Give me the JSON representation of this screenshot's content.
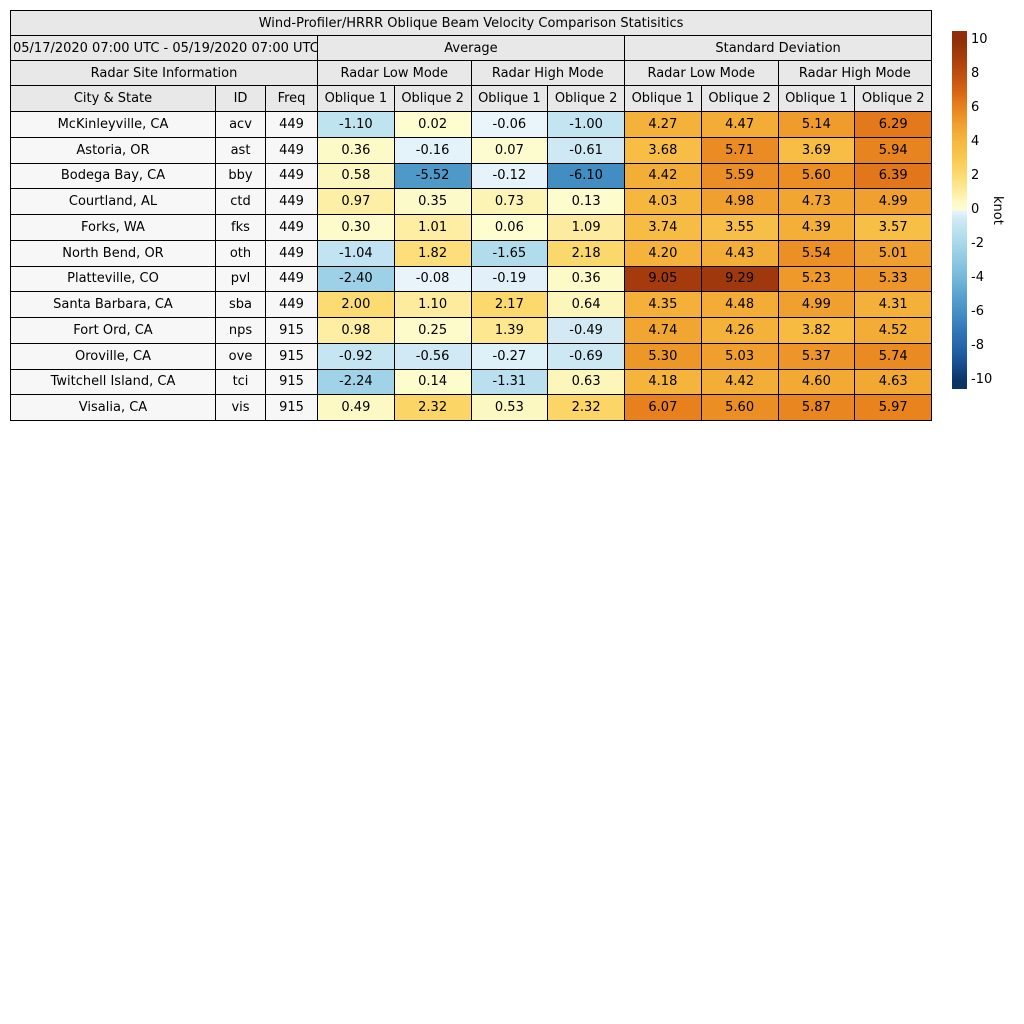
{
  "chart_data": {
    "type": "heatmap",
    "title": "Wind-Profiler/HRRR Oblique Beam Velocity Comparison Statisitics",
    "date_range": "05/17/2020 07:00 UTC - 05/19/2020 07:00 UTC",
    "site_info_header": "Radar Site Information",
    "group_headers": {
      "average": "Average",
      "std": "Standard Deviation"
    },
    "mode_headers": [
      "Radar Low Mode",
      "Radar High Mode",
      "Radar Low Mode",
      "Radar High Mode"
    ],
    "info_columns": [
      "City & State",
      "ID",
      "Freq"
    ],
    "oblique_headers": [
      "Oblique 1",
      "Oblique 2",
      "Oblique 1",
      "Oblique 2",
      "Oblique 1",
      "Oblique 2",
      "Oblique 1",
      "Oblique 2"
    ],
    "rows": [
      {
        "city": "McKinleyville, CA",
        "id": "acv",
        "freq": "449",
        "values": [
          -1.1,
          0.02,
          -0.06,
          -1.0,
          4.27,
          4.47,
          5.14,
          6.29
        ]
      },
      {
        "city": "Astoria, OR",
        "id": "ast",
        "freq": "449",
        "values": [
          0.36,
          -0.16,
          0.07,
          -0.61,
          3.68,
          5.71,
          3.69,
          5.94
        ]
      },
      {
        "city": "Bodega Bay, CA",
        "id": "bby",
        "freq": "449",
        "values": [
          0.58,
          -5.52,
          -0.12,
          -6.1,
          4.42,
          5.59,
          5.6,
          6.39
        ]
      },
      {
        "city": "Courtland, AL",
        "id": "ctd",
        "freq": "449",
        "values": [
          0.97,
          0.35,
          0.73,
          0.13,
          4.03,
          4.98,
          4.73,
          4.99
        ]
      },
      {
        "city": "Forks, WA",
        "id": "fks",
        "freq": "449",
        "values": [
          0.3,
          1.01,
          0.06,
          1.09,
          3.74,
          3.55,
          4.39,
          3.57
        ]
      },
      {
        "city": "North Bend, OR",
        "id": "oth",
        "freq": "449",
        "values": [
          -1.04,
          1.82,
          -1.65,
          2.18,
          4.2,
          4.43,
          5.54,
          5.01
        ]
      },
      {
        "city": "Platteville, CO",
        "id": "pvl",
        "freq": "449",
        "values": [
          -2.4,
          -0.08,
          -0.19,
          0.36,
          9.05,
          9.29,
          5.23,
          5.33
        ]
      },
      {
        "city": "Santa Barbara, CA",
        "id": "sba",
        "freq": "449",
        "values": [
          2.0,
          1.1,
          2.17,
          0.64,
          4.35,
          4.48,
          4.99,
          4.31
        ]
      },
      {
        "city": "Fort Ord, CA",
        "id": "nps",
        "freq": "915",
        "values": [
          0.98,
          0.25,
          1.39,
          -0.49,
          4.74,
          4.26,
          3.82,
          4.52
        ]
      },
      {
        "city": "Oroville, CA",
        "id": "ove",
        "freq": "915",
        "values": [
          -0.92,
          -0.56,
          -0.27,
          -0.69,
          5.3,
          5.03,
          5.37,
          5.74
        ]
      },
      {
        "city": "Twitchell Island, CA",
        "id": "tci",
        "freq": "915",
        "values": [
          -2.24,
          0.14,
          -1.31,
          0.63,
          4.18,
          4.42,
          4.6,
          4.63
        ]
      },
      {
        "city": "Visalia, CA",
        "id": "vis",
        "freq": "915",
        "values": [
          0.49,
          2.32,
          0.53,
          2.32,
          6.07,
          5.6,
          5.87,
          5.97
        ]
      }
    ],
    "colorbar": {
      "label": "knot",
      "ticks": [
        10,
        8,
        6,
        4,
        2,
        0,
        -2,
        -4,
        -6,
        -8,
        -10
      ],
      "range": [
        -10.5,
        10.5
      ],
      "colormap": {
        "negative": [
          [
            -10,
            "#0b3564"
          ],
          [
            -9,
            "#174f92"
          ],
          [
            -8,
            "#2665a9"
          ],
          [
            -7,
            "#3379b8"
          ],
          [
            -6,
            "#4490c4"
          ],
          [
            -5,
            "#5aa3cf"
          ],
          [
            -4,
            "#74b8d9"
          ],
          [
            -3,
            "#8ec7e2"
          ],
          [
            -2,
            "#a6d7ea"
          ],
          [
            -1,
            "#c3e4f1"
          ],
          [
            -0.5,
            "#d2eaf5"
          ],
          [
            0,
            "#ecf6fb"
          ]
        ],
        "positive": [
          [
            0,
            "#fdfdd0"
          ],
          [
            0.5,
            "#fcf9c4"
          ],
          [
            1,
            "#fdeea3"
          ],
          [
            2,
            "#fcdc72"
          ],
          [
            3,
            "#f9c851"
          ],
          [
            4,
            "#f6b83e"
          ],
          [
            5,
            "#f0a02e"
          ],
          [
            6,
            "#e8821e"
          ],
          [
            7,
            "#d66414"
          ],
          [
            8,
            "#bc4f10"
          ],
          [
            9,
            "#a63c0d"
          ],
          [
            10,
            "#8f2e08"
          ]
        ]
      }
    }
  }
}
